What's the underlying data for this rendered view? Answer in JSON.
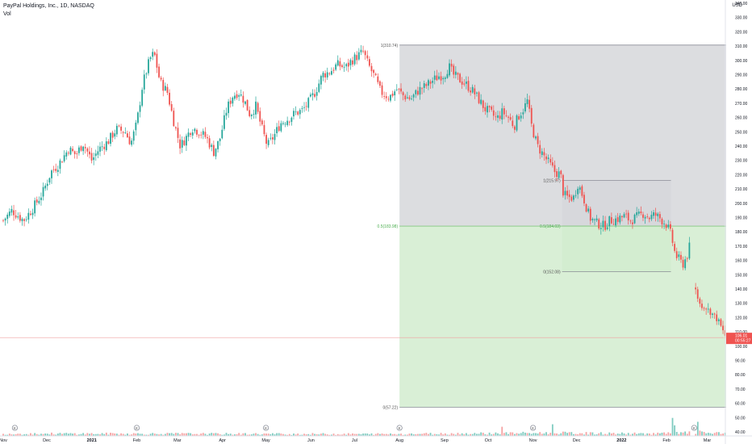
{
  "header": {
    "title": "PayPal Holdings, Inc., 1D, NASDAQ",
    "volume_label": "Vol",
    "currency": "USD"
  },
  "colors": {
    "up": "#26a69a",
    "down": "#ef5350",
    "up_vol": "#7fcbc0",
    "down_vol": "#f5a3a3",
    "zone_upper": "#d6d7db",
    "zone_lower": "#d2eccf",
    "fib_line": "#7dc47a",
    "price_badge": "#ef5350"
  },
  "chart_data": {
    "type": "candlestick",
    "y_axis": {
      "min": 40,
      "max": 340,
      "ticks": [
        "40.00",
        "50.00",
        "60.00",
        "70.00",
        "80.00",
        "90.00",
        "100.00",
        "110.00",
        "120.00",
        "130.00",
        "140.00",
        "150.00",
        "160.00",
        "170.00",
        "180.00",
        "190.00",
        "200.00",
        "210.00",
        "220.00",
        "230.00",
        "240.00",
        "250.00",
        "260.00",
        "270.00",
        "280.00",
        "290.00",
        "300.00",
        "310.00",
        "320.00",
        "330.00",
        "340.00"
      ]
    },
    "x_axis": {
      "ticks": [
        {
          "label": "Nov",
          "day": 0
        },
        {
          "label": "Dec",
          "day": 30
        },
        {
          "label": "2021",
          "day": 61
        },
        {
          "label": "Feb",
          "day": 92
        },
        {
          "label": "Mar",
          "day": 120
        },
        {
          "label": "Apr",
          "day": 151
        },
        {
          "label": "May",
          "day": 181
        },
        {
          "label": "Jun",
          "day": 212
        },
        {
          "label": "Jul",
          "day": 242
        },
        {
          "label": "Aug",
          "day": 273
        },
        {
          "label": "Sep",
          "day": 304
        },
        {
          "label": "Oct",
          "day": 334
        },
        {
          "label": "Nov",
          "day": 365
        },
        {
          "label": "Dec",
          "day": 395
        },
        {
          "label": "2022",
          "day": 426
        },
        {
          "label": "Feb",
          "day": 457
        },
        {
          "label": "Mar",
          "day": 485
        }
      ]
    },
    "price_path": [
      [
        0,
        188
      ],
      [
        6,
        195
      ],
      [
        14,
        188
      ],
      [
        20,
        196
      ],
      [
        27,
        207
      ],
      [
        33,
        222
      ],
      [
        38,
        227
      ],
      [
        45,
        238
      ],
      [
        50,
        234
      ],
      [
        55,
        242
      ],
      [
        61,
        230
      ],
      [
        66,
        238
      ],
      [
        72,
        243
      ],
      [
        78,
        252
      ],
      [
        84,
        250
      ],
      [
        88,
        242
      ],
      [
        92,
        256
      ],
      [
        96,
        283
      ],
      [
        101,
        301
      ],
      [
        104,
        305
      ],
      [
        108,
        285
      ],
      [
        113,
        278
      ],
      [
        118,
        255
      ],
      [
        122,
        240
      ],
      [
        126,
        246
      ],
      [
        130,
        253
      ],
      [
        135,
        250
      ],
      [
        140,
        246
      ],
      [
        145,
        236
      ],
      [
        149,
        244
      ],
      [
        154,
        266
      ],
      [
        158,
        275
      ],
      [
        162,
        278
      ],
      [
        166,
        272
      ],
      [
        170,
        262
      ],
      [
        174,
        268
      ],
      [
        178,
        253
      ],
      [
        182,
        240
      ],
      [
        187,
        248
      ],
      [
        191,
        256
      ],
      [
        196,
        259
      ],
      [
        201,
        263
      ],
      [
        206,
        265
      ],
      [
        210,
        270
      ],
      [
        215,
        278
      ],
      [
        220,
        290
      ],
      [
        225,
        292
      ],
      [
        230,
        297
      ],
      [
        236,
        295
      ],
      [
        240,
        300
      ],
      [
        244,
        303
      ],
      [
        248,
        306
      ],
      [
        251,
        298
      ],
      [
        256,
        288
      ],
      [
        260,
        278
      ],
      [
        266,
        274
      ],
      [
        271,
        280
      ],
      [
        276,
        275
      ],
      [
        281,
        273
      ],
      [
        286,
        279
      ],
      [
        291,
        282
      ],
      [
        296,
        286
      ],
      [
        300,
        289
      ],
      [
        304,
        290
      ],
      [
        307,
        296
      ],
      [
        310,
        290
      ],
      [
        314,
        287
      ],
      [
        319,
        283
      ],
      [
        324,
        278
      ],
      [
        328,
        272
      ],
      [
        332,
        266
      ],
      [
        336,
        263
      ],
      [
        340,
        259
      ],
      [
        344,
        264
      ],
      [
        348,
        260
      ],
      [
        352,
        254
      ],
      [
        355,
        261
      ],
      [
        359,
        267
      ],
      [
        361,
        272
      ],
      [
        364,
        254
      ],
      [
        368,
        240
      ],
      [
        372,
        234
      ],
      [
        376,
        228
      ],
      [
        380,
        222
      ],
      [
        384,
        220
      ],
      [
        386,
        206
      ],
      [
        389,
        204
      ],
      [
        393,
        204
      ],
      [
        396,
        214
      ],
      [
        400,
        203
      ],
      [
        404,
        190
      ],
      [
        409,
        186
      ],
      [
        414,
        184
      ],
      [
        418,
        188
      ],
      [
        423,
        189
      ],
      [
        428,
        191
      ],
      [
        432,
        188
      ],
      [
        436,
        190
      ],
      [
        441,
        193
      ],
      [
        445,
        190
      ],
      [
        449,
        192
      ],
      [
        453,
        189
      ],
      [
        457,
        185
      ],
      [
        460,
        178
      ],
      [
        463,
        164
      ],
      [
        466,
        160
      ],
      [
        468,
        157
      ],
      [
        471,
        163
      ],
      [
        474,
        174
      ]
    ],
    "post_gap_path": [
      [
        477,
        139
      ],
      [
        480,
        129
      ],
      [
        484,
        127
      ],
      [
        487,
        124
      ],
      [
        490,
        121
      ],
      [
        493,
        117
      ],
      [
        496,
        110
      ],
      [
        498,
        106
      ]
    ],
    "volume_path": [
      [
        0,
        6
      ],
      [
        60,
        6
      ],
      [
        150,
        5.5
      ],
      [
        250,
        5
      ],
      [
        300,
        6
      ],
      [
        340,
        7
      ],
      [
        380,
        8
      ],
      [
        400,
        7
      ],
      [
        440,
        6
      ],
      [
        460,
        7
      ],
      [
        470,
        8
      ],
      [
        477,
        10
      ],
      [
        498,
        6
      ]
    ],
    "volume_spikes": [
      {
        "day": 344,
        "value": 26
      },
      {
        "day": 378,
        "value": 33
      },
      {
        "day": 461,
        "value": 51
      },
      {
        "day": 462,
        "value": 30
      },
      {
        "day": 476,
        "value": 152
      },
      {
        "day": 478,
        "value": 40
      }
    ],
    "volume_max": 160,
    "earnings_markers": [
      8,
      92,
      181,
      273,
      365,
      476
    ],
    "fib_large": {
      "start_day": 273,
      "end_day": 498,
      "top": 310.74,
      "mid": 183.98,
      "bottom": 57.22,
      "top_label": "1(310.74)",
      "mid_label": "0.5(183.98)",
      "bottom_label": "0(57.22)"
    },
    "fib_small": {
      "start_day": 385,
      "end_day": 460,
      "top": 215.97,
      "mid": 184.03,
      "bottom": 152.08,
      "top_label": "1(215.97)",
      "mid_label": "0.5(184.03)",
      "bottom_label": "0(152.08)"
    },
    "current_price": {
      "value": 106.01,
      "label": "106.01",
      "countdown": "00:55:27"
    },
    "earnings_marker_label": "E"
  }
}
